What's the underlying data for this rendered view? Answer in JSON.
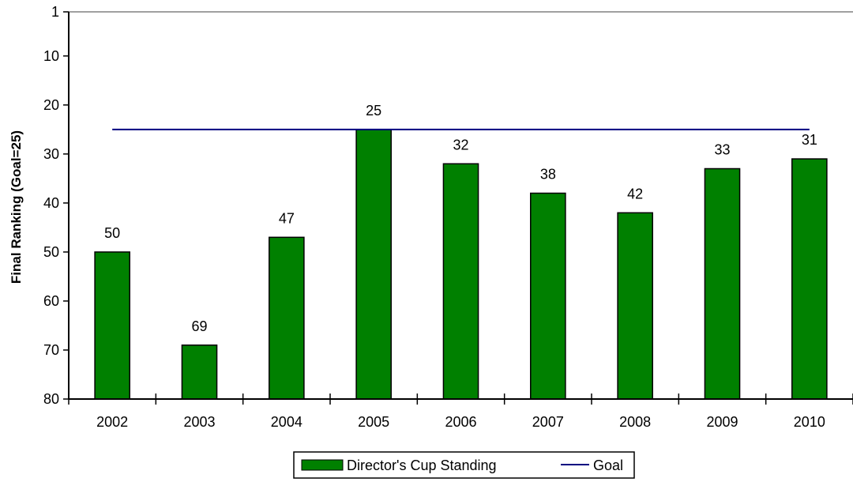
{
  "chart_data": {
    "type": "bar",
    "title": "",
    "xlabel": "",
    "ylabel": "Final Ranking (Goal=25)",
    "categories": [
      "2002",
      "2003",
      "2004",
      "2005",
      "2006",
      "2007",
      "2008",
      "2009",
      "2010"
    ],
    "series": [
      {
        "name": "Director's Cup Standing",
        "type": "bar",
        "values": [
          50,
          69,
          47,
          25,
          32,
          38,
          42,
          33,
          31
        ],
        "color": "#008000"
      },
      {
        "name": "Goal",
        "type": "line",
        "values": [
          25,
          25,
          25,
          25,
          25,
          25,
          25,
          25,
          25
        ],
        "color": "#000080"
      }
    ],
    "y_axis": {
      "inverted": true,
      "ylim": [
        1,
        80
      ],
      "ticks": [
        1,
        10,
        20,
        30,
        40,
        50,
        60,
        70,
        80
      ]
    },
    "grid": false,
    "legend_position": "bottom-center"
  }
}
